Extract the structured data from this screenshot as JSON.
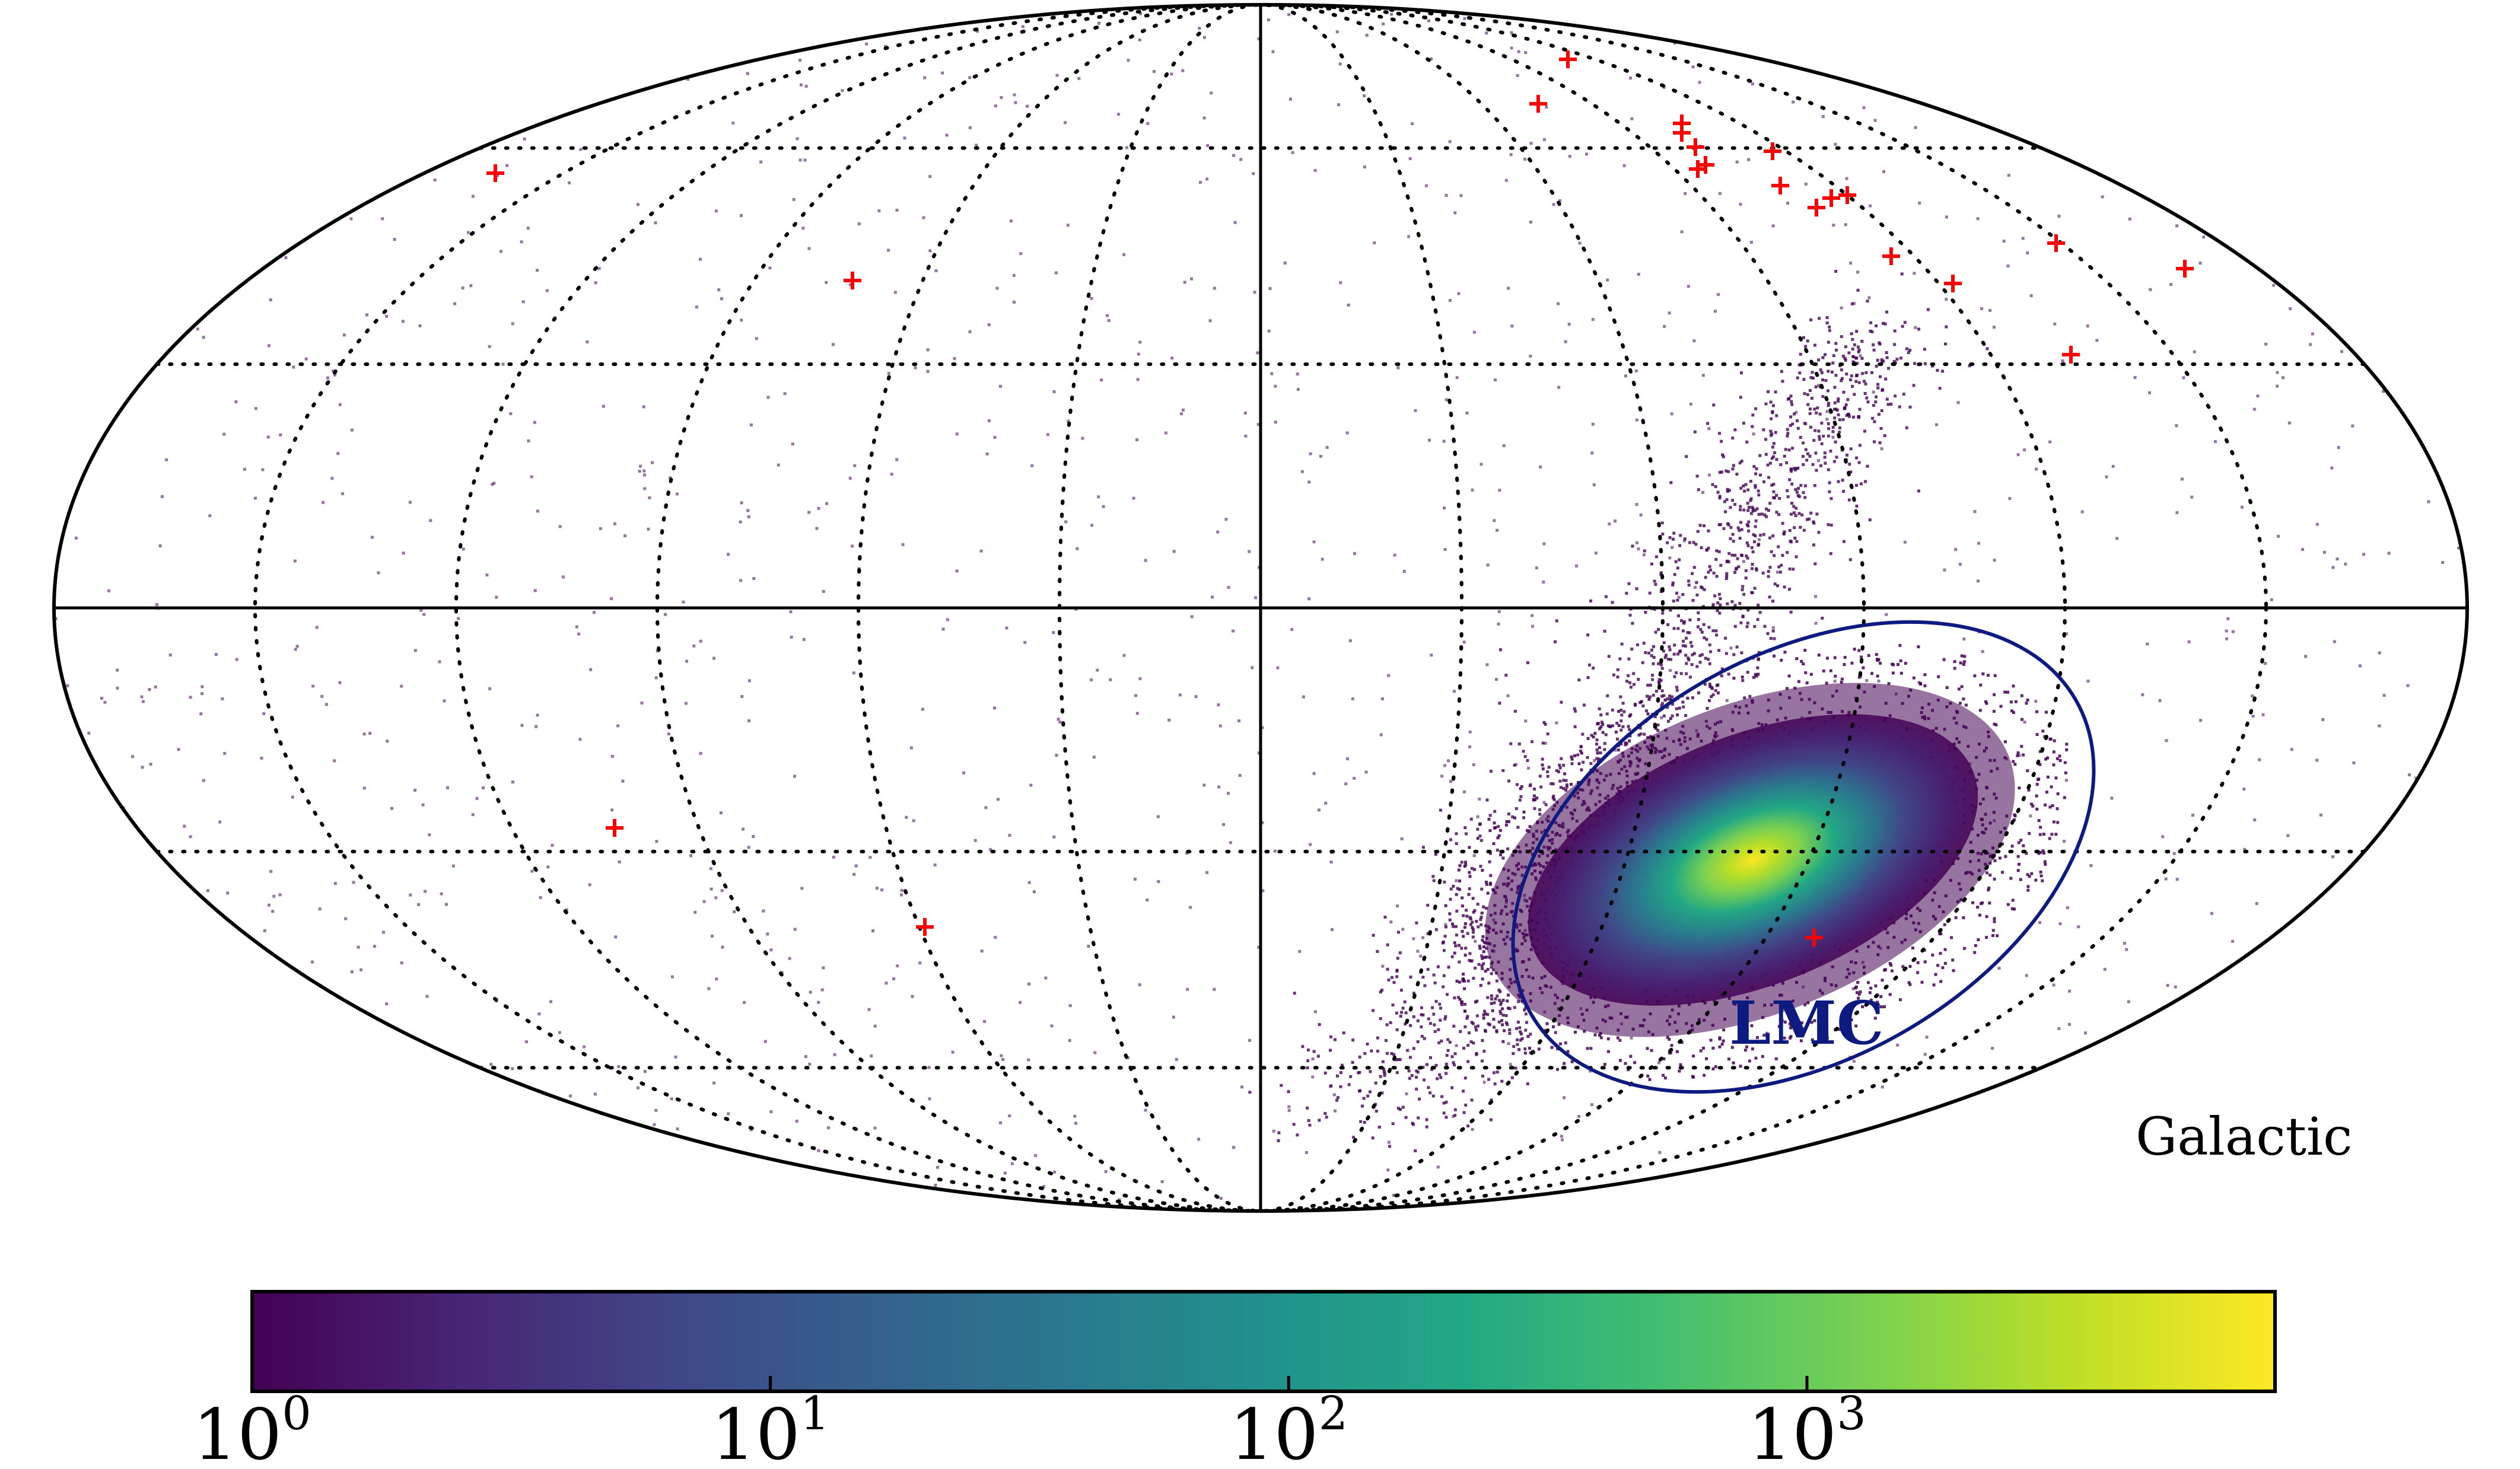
{
  "figure": {
    "projection_label": "Galactic",
    "region_label": "LMC"
  },
  "colorbar": {
    "colormap": "viridis",
    "scale": "log",
    "ticks": [
      {
        "base": "10",
        "exp": "0",
        "value": 1
      },
      {
        "base": "10",
        "exp": "1",
        "value": 10
      },
      {
        "base": "10",
        "exp": "2",
        "value": 100
      },
      {
        "base": "10",
        "exp": "3",
        "value": 1000
      }
    ],
    "vmin": 1,
    "vmax": 8000
  },
  "graticule": {
    "meridian_step_deg": 30,
    "parallels_deg": [
      -60,
      -30,
      0,
      30,
      60
    ]
  },
  "colors": {
    "grid": "#000000",
    "markers": "#ff0000",
    "region": "#0d1a80",
    "low_density": "#440154",
    "peak": "#fde725"
  }
}
